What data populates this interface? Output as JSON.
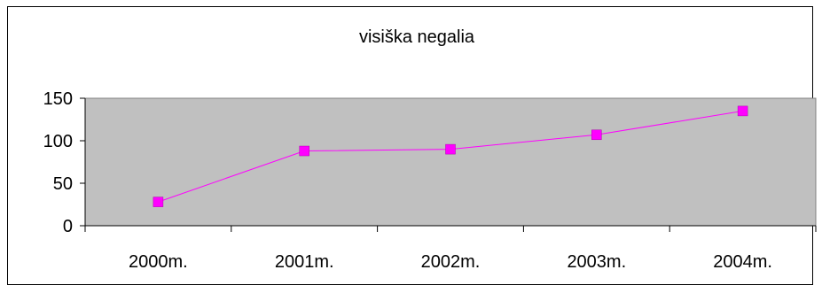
{
  "chart_data": {
    "type": "line",
    "title": "visiška negalia",
    "categories": [
      "2000m.",
      "2001m.",
      "2002m.",
      "2003m.",
      "2004m."
    ],
    "series": [
      {
        "values": [
          28,
          88,
          90,
          107,
          135
        ]
      }
    ],
    "ylim": [
      0,
      150
    ],
    "yticks": [
      0,
      50,
      100,
      150
    ],
    "grid": false,
    "legend": "none",
    "colors": {
      "plot_background": "#c0c0c0",
      "line": "#ff00ff",
      "marker": "#ff00ff"
    }
  }
}
